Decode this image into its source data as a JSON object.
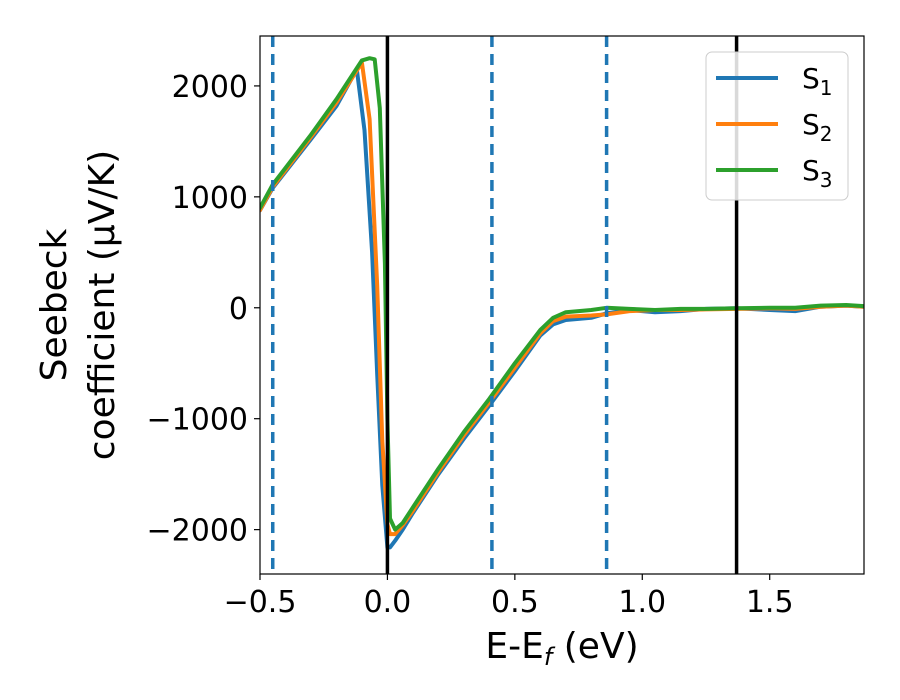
{
  "chart_data": {
    "type": "line",
    "xlabel": "E-E",
    "xlabel_sub": "f",
    "xlabel_units": " (eV)",
    "ylabel_line1": "Seebeck",
    "ylabel_line2": "coefficient  (μV/K)",
    "xlim": [
      -0.5,
      1.87
    ],
    "ylim": [
      -2400,
      2450
    ],
    "xticks": [
      -0.5,
      0.0,
      0.5,
      1.0,
      1.5
    ],
    "xtick_labels": [
      "−0.5",
      "0.0",
      "0.5",
      "1.0",
      "1.5"
    ],
    "yticks": [
      -2000,
      -1000,
      0,
      1000,
      2000
    ],
    "ytick_labels": [
      "−2000",
      "−1000",
      "0",
      "1000",
      "2000"
    ],
    "vlines_solid": [
      0.0,
      1.37
    ],
    "vlines_dashed": [
      -0.45,
      0.41,
      0.86
    ],
    "legend_position": "top-right",
    "series": [
      {
        "name": "S",
        "sub": "1",
        "color": "#1f77b4",
        "x": [
          -0.5,
          -0.45,
          -0.3,
          -0.2,
          -0.12,
          -0.09,
          -0.06,
          -0.04,
          -0.02,
          0.0,
          0.01,
          0.03,
          0.06,
          0.1,
          0.2,
          0.3,
          0.4,
          0.5,
          0.6,
          0.65,
          0.7,
          0.8,
          0.86,
          0.95,
          1.05,
          1.15,
          1.25,
          1.37,
          1.5,
          1.6,
          1.7,
          1.8,
          1.87
        ],
        "y": [
          880,
          1080,
          1520,
          1820,
          2150,
          1600,
          500,
          -600,
          -1600,
          -2160,
          -2160,
          -2100,
          -2000,
          -1850,
          -1500,
          -1180,
          -880,
          -570,
          -250,
          -150,
          -110,
          -90,
          -50,
          -20,
          -40,
          -30,
          -10,
          -5,
          -20,
          -30,
          10,
          20,
          10
        ]
      },
      {
        "name": "S",
        "sub": "2",
        "color": "#ff7f0e",
        "x": [
          -0.5,
          -0.45,
          -0.3,
          -0.2,
          -0.1,
          -0.07,
          -0.04,
          -0.02,
          0.0,
          0.01,
          0.03,
          0.06,
          0.1,
          0.2,
          0.3,
          0.4,
          0.5,
          0.6,
          0.65,
          0.7,
          0.8,
          0.86,
          0.95,
          1.05,
          1.15,
          1.25,
          1.37,
          1.5,
          1.6,
          1.7,
          1.8,
          1.87
        ],
        "y": [
          880,
          1090,
          1540,
          1850,
          2210,
          1700,
          200,
          -1200,
          -1950,
          -2040,
          -2040,
          -1960,
          -1830,
          -1480,
          -1150,
          -850,
          -540,
          -230,
          -120,
          -80,
          -70,
          -60,
          -30,
          -20,
          -20,
          -15,
          -10,
          -5,
          -10,
          10,
          20,
          10
        ]
      },
      {
        "name": "S",
        "sub": "3",
        "color": "#2ca02c",
        "x": [
          -0.5,
          -0.45,
          -0.3,
          -0.2,
          -0.1,
          -0.07,
          -0.05,
          -0.03,
          -0.01,
          0.0,
          0.01,
          0.03,
          0.06,
          0.1,
          0.2,
          0.3,
          0.4,
          0.5,
          0.6,
          0.65,
          0.7,
          0.8,
          0.86,
          0.95,
          1.05,
          1.15,
          1.25,
          1.37,
          1.5,
          1.6,
          1.7,
          1.8,
          1.87
        ],
        "y": [
          900,
          1110,
          1560,
          1880,
          2230,
          2250,
          2240,
          1800,
          400,
          -1000,
          -1900,
          -2000,
          -1940,
          -1800,
          -1450,
          -1120,
          -820,
          -500,
          -200,
          -90,
          -40,
          -20,
          0,
          -10,
          -20,
          -10,
          -10,
          -5,
          0,
          0,
          20,
          25,
          15
        ]
      }
    ]
  }
}
